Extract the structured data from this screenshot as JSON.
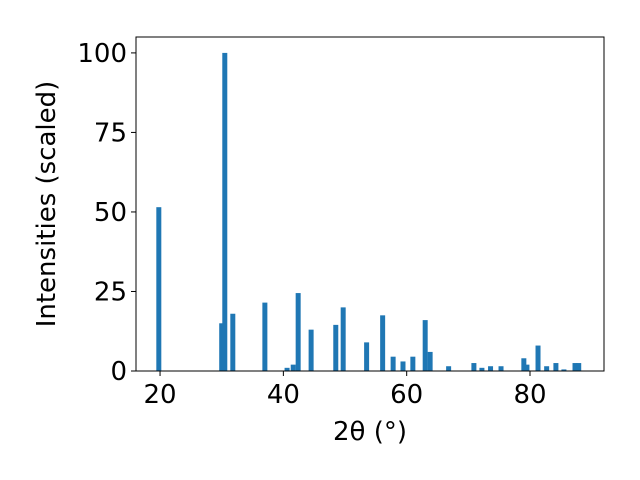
{
  "chart_data": {
    "type": "bar",
    "x_label": "2θ (°)",
    "y_label": "Intensities (scaled)",
    "color": "#1f77b4",
    "x": [
      19.8,
      30.0,
      30.5,
      31.8,
      37.0,
      40.6,
      41.6,
      42.4,
      44.5,
      48.5,
      49.7,
      53.5,
      56.1,
      57.8,
      59.4,
      61.0,
      63.0,
      63.8,
      66.8,
      70.9,
      72.2,
      73.6,
      75.3,
      79.0,
      79.5,
      81.3,
      82.7,
      84.2,
      85.5,
      87.3,
      87.9
    ],
    "values": [
      51.5,
      15,
      100,
      18,
      21.5,
      1,
      2,
      24.5,
      13,
      14.5,
      20,
      9,
      17.5,
      4.5,
      3,
      4.5,
      16,
      6,
      1.5,
      2.5,
      1,
      1.5,
      1.5,
      4,
      2,
      8,
      1.5,
      2.5,
      0.5,
      2.5,
      2.5
    ],
    "xlim": [
      16.1,
      92.0
    ],
    "ylim": [
      0,
      105
    ],
    "xticks": [
      20,
      40,
      60,
      80
    ],
    "yticks": [
      0,
      25,
      50,
      75,
      100
    ],
    "grid": false
  }
}
